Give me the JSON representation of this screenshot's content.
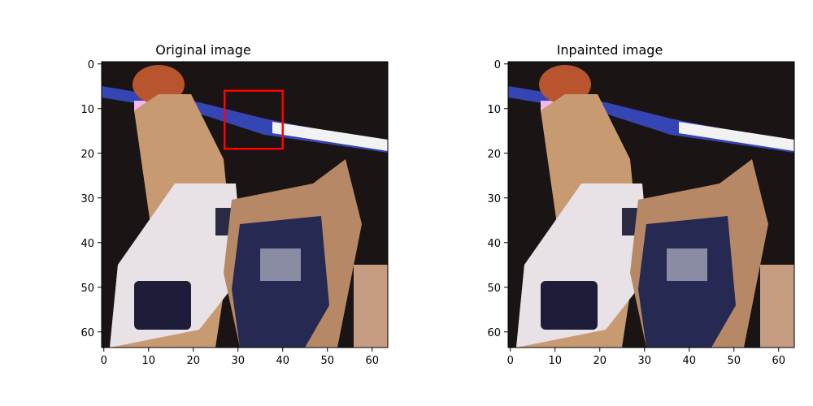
{
  "panels": [
    {
      "title": "Original image",
      "show_box": true
    },
    {
      "title": "Inpainted image",
      "show_box": false
    }
  ],
  "axis": {
    "x_ticks": [
      "0",
      "10",
      "20",
      "30",
      "40",
      "50",
      "60"
    ],
    "y_ticks": [
      "0",
      "10",
      "20",
      "30",
      "40",
      "50",
      "60"
    ],
    "x_tick_values": [
      0,
      10,
      20,
      30,
      40,
      50,
      60
    ],
    "y_tick_values": [
      0,
      10,
      20,
      30,
      40,
      50,
      60
    ],
    "pixel_extent": [
      64,
      64
    ]
  },
  "highlight_box": {
    "x0": 27,
    "y0": 6,
    "x1": 40,
    "y1": 19,
    "color": "#ff0000"
  },
  "image_description_icon": "basketball-players-photo"
}
